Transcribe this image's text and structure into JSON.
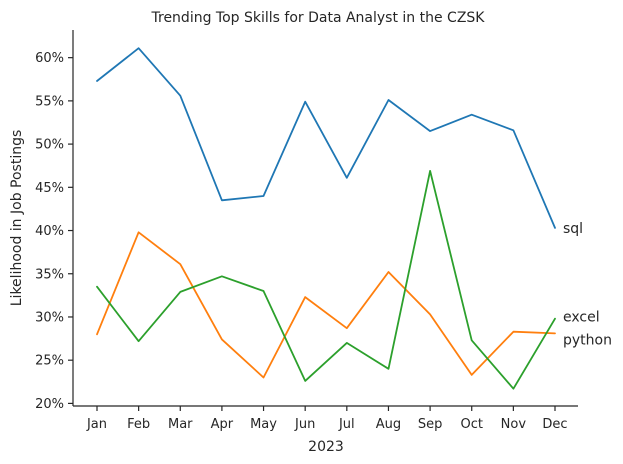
{
  "chart_data": {
    "type": "line",
    "title": "Trending Top Skills for Data Analyst in the CZSK",
    "xlabel": "2023",
    "ylabel": "Likelihood in Job Postings",
    "categories": [
      "Jan",
      "Feb",
      "Mar",
      "Apr",
      "May",
      "Jun",
      "Jul",
      "Aug",
      "Sep",
      "Oct",
      "Nov",
      "Dec"
    ],
    "yticks": [
      20,
      25,
      30,
      35,
      40,
      45,
      50,
      55,
      60
    ],
    "ytick_labels": [
      "20%",
      "25%",
      "30%",
      "35%",
      "40%",
      "45%",
      "50%",
      "55%",
      "60%"
    ],
    "ylim": [
      19.7,
      63.2
    ],
    "grid": false,
    "legend": "direct labels at line ends",
    "series": [
      {
        "name": "sql",
        "color": "#1f77b4",
        "values": [
          57.3,
          61.1,
          55.6,
          43.5,
          44.0,
          54.9,
          46.1,
          55.1,
          51.5,
          53.4,
          51.6,
          40.3
        ]
      },
      {
        "name": "python",
        "color": "#ff7f0e",
        "values": [
          28.0,
          39.8,
          36.1,
          27.4,
          23.0,
          32.3,
          28.7,
          35.2,
          30.3,
          23.3,
          28.3,
          28.1
        ]
      },
      {
        "name": "excel",
        "color": "#2ca02c",
        "values": [
          33.5,
          27.2,
          32.9,
          34.7,
          33.0,
          22.6,
          27.0,
          24.0,
          46.9,
          27.3,
          21.7,
          29.8
        ]
      }
    ]
  }
}
